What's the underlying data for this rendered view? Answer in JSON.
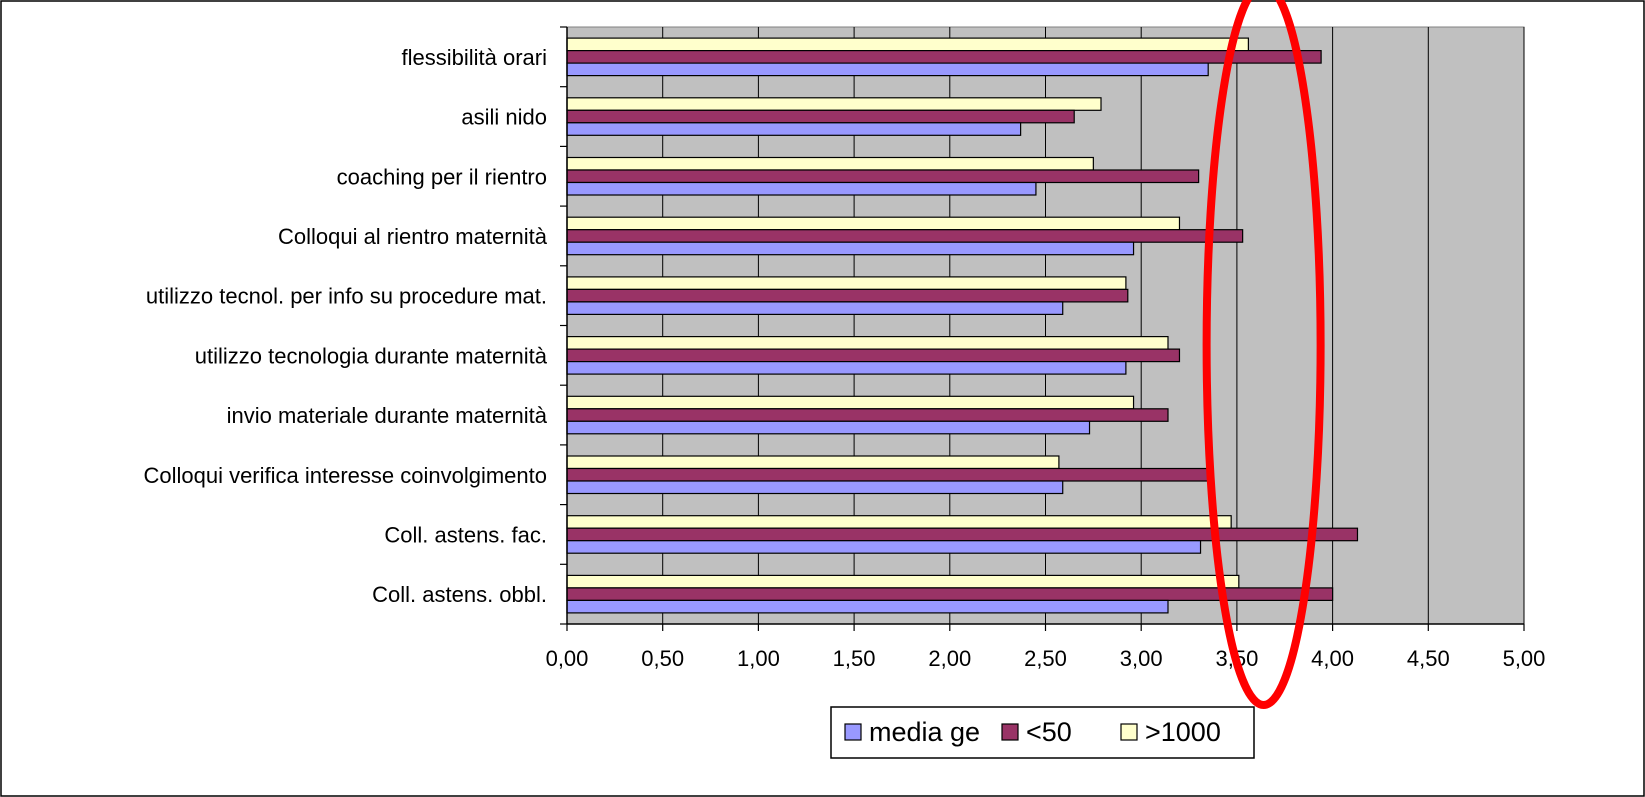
{
  "chart_data": {
    "type": "bar",
    "orientation": "horizontal",
    "categories": [
      "flessibilità orari",
      "asili nido",
      "coaching per il rientro",
      "Colloqui al rientro maternità",
      "utilizzo tecnol. per info su procedure mat.",
      "utilizzo tecnologia durante maternità",
      "invio materiale durante maternità",
      "Colloqui verifica interesse coinvolgimento",
      "Coll. astens. fac.",
      "Coll. astens. obbl."
    ],
    "series": [
      {
        "name": "media ge",
        "color": "#9999ff",
        "values": [
          3.35,
          2.37,
          2.45,
          2.96,
          2.59,
          2.92,
          2.73,
          2.59,
          3.31,
          3.14
        ]
      },
      {
        "name": "<50",
        "color": "#993366",
        "values": [
          3.94,
          2.65,
          3.3,
          3.53,
          2.93,
          3.2,
          3.14,
          3.36,
          4.13,
          4.0
        ]
      },
      {
        "name": ">1000",
        "color": "#ffffcc",
        "values": [
          3.56,
          2.79,
          2.75,
          3.2,
          2.92,
          3.14,
          2.96,
          2.57,
          3.47,
          3.51
        ]
      }
    ],
    "xlim": [
      0,
      5
    ],
    "xticks": [
      "0,00",
      "0,50",
      "1,00",
      "1,50",
      "2,00",
      "2,50",
      "3,00",
      "3,50",
      "4,00",
      "4,50",
      "5,00"
    ],
    "xlabel": "",
    "ylabel": "",
    "title": "",
    "plot_background": "#c0c0c0",
    "grid": true,
    "legend_position": "bottom-center",
    "annotation": {
      "shape": "ellipse",
      "color": "#ff0000",
      "center_x_value": 3.65
    }
  }
}
